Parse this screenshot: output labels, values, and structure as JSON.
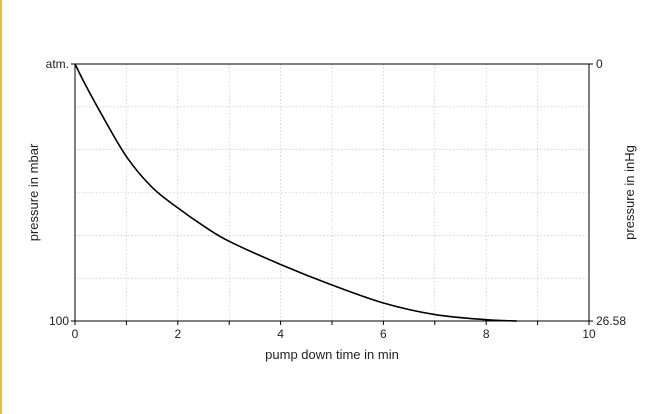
{
  "chart_data": {
    "type": "line",
    "xlabel": "pump down time in min",
    "ylabel": "pressure in mbar",
    "ylabel_right": "pressure in inHg",
    "xlim": [
      0,
      10
    ],
    "x_ticks": [
      0,
      2,
      4,
      6,
      8,
      10
    ],
    "y_left_ticks": [
      {
        "label": "atm.",
        "position": "top"
      },
      {
        "label": "100",
        "position": "bottom"
      }
    ],
    "y_right_ticks": [
      {
        "label": "0",
        "position": "top"
      },
      {
        "label": "26.58",
        "position": "bottom"
      }
    ],
    "grid": true,
    "series": [
      {
        "color": "#000000",
        "x": [
          0,
          0.2,
          0.5,
          1,
          1.5,
          2,
          2.5,
          3,
          4,
          5,
          6,
          7,
          8,
          8.6
        ],
        "y": [
          1,
          0.92,
          0.81,
          0.64,
          0.52,
          0.44,
          0.37,
          0.31,
          0.22,
          0.14,
          0.07,
          0.025,
          0.005,
          0
        ]
      }
    ]
  }
}
